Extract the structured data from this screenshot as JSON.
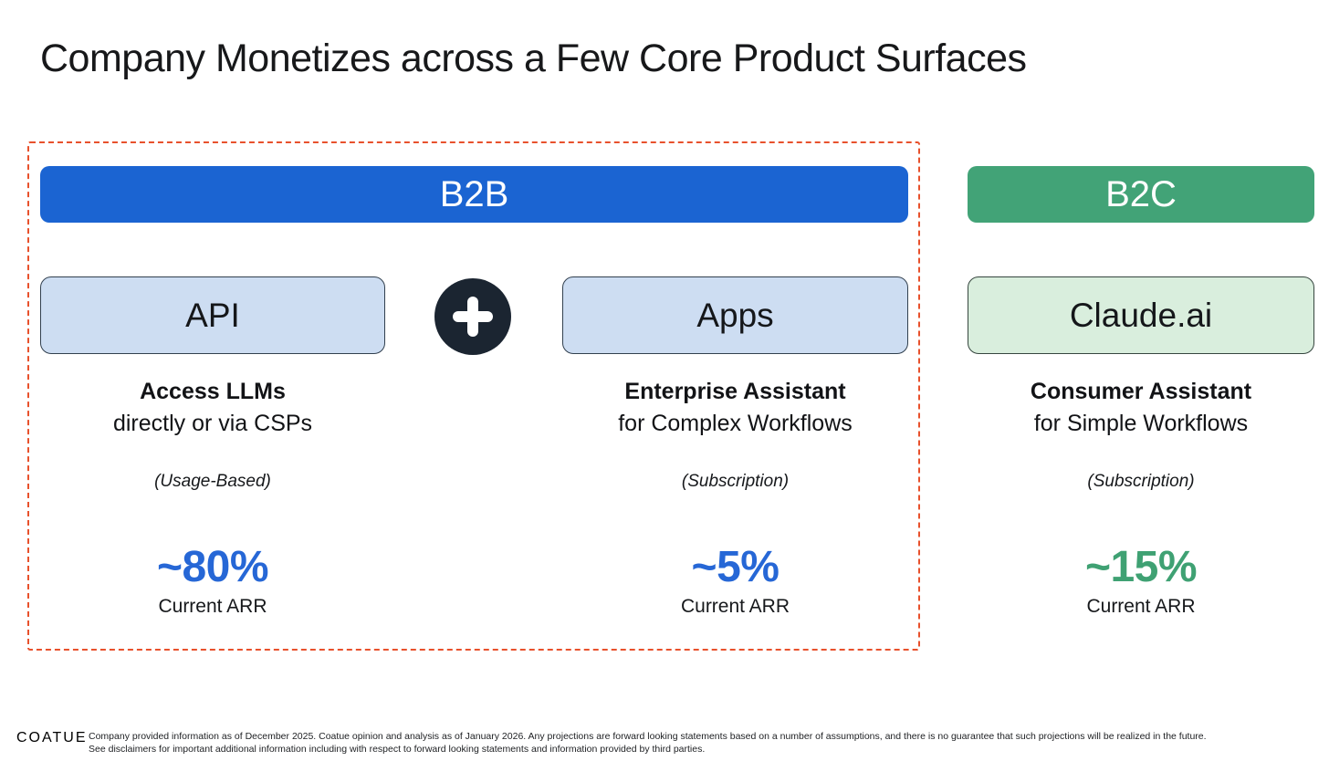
{
  "title": "Company Monetizes across a Few Core Product Surfaces",
  "b2b": {
    "header": "B2B",
    "plus_icon": "plus",
    "columns": [
      {
        "box": "API",
        "line1": "Access LLMs",
        "line2": "directly or via CSPs",
        "pricing": "(Usage-Based)",
        "pct": "~80%",
        "pct_label": "Current ARR"
      },
      {
        "box": "Apps",
        "line1": "Enterprise Assistant",
        "line2": "for Complex Workflows",
        "pricing": "(Subscription)",
        "pct": "~5%",
        "pct_label": "Current ARR"
      }
    ]
  },
  "b2c": {
    "header": "B2C",
    "box": "Claude.ai",
    "line1": "Consumer Assistant",
    "line2": "for Simple Workflows",
    "pricing": "(Subscription)",
    "pct": "~15%",
    "pct_label": "Current ARR"
  },
  "footer": {
    "logo": "COATUE",
    "disclaimer_line1": "Company provided information as of December 2025. Coatue opinion and analysis as of January 2026. Any projections are forward looking statements based on a number of assumptions, and there is no guarantee that such projections will be realized in the future.",
    "disclaimer_line2": "See disclaimers for important additional information including with respect to forward looking statements and information provided by third parties."
  },
  "colors": {
    "b2b_header": "#1b64d2",
    "b2b_box": "#cdddf2",
    "b2c_header": "#42a377",
    "b2c_box": "#d9eedd",
    "dashed_border": "#e8512c",
    "blue_accent": "#2667d6",
    "green_accent": "#3fa173"
  }
}
